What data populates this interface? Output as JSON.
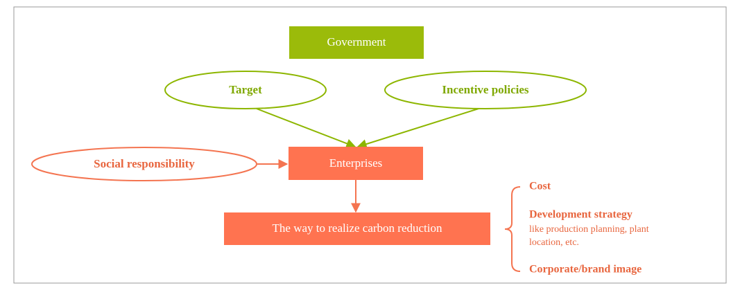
{
  "nodes": {
    "government": "Government",
    "target": "Target",
    "incentive": "Incentive policies",
    "social": "Social responsibility",
    "enterprises": "Enterprises",
    "way": "The way to realize carbon reduction"
  },
  "factors": [
    {
      "title": "Cost"
    },
    {
      "title": "Development strategy",
      "lines": [
        "like production planning, plant",
        "location, etc."
      ]
    },
    {
      "title": "Corporate/brand image"
    }
  ]
}
